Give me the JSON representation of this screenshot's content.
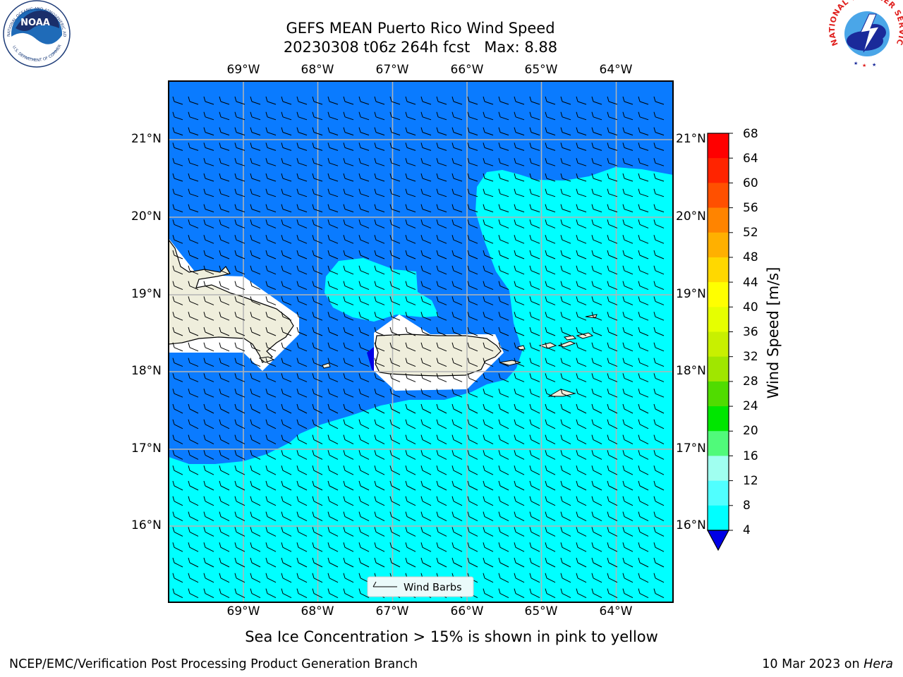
{
  "title": {
    "line1": "GEFS MEAN Puerto Rico Wind Speed",
    "line2": "20230308 t06z 264h fcst   Max: 8.88"
  },
  "map": {
    "lon_labels": [
      "69°W",
      "68°W",
      "67°W",
      "66°W",
      "65°W",
      "64°W"
    ],
    "lat_labels": [
      "21°N",
      "20°N",
      "19°N",
      "18°N",
      "17°N",
      "16°N"
    ],
    "colors": {
      "wind_4_8": "#0a7bff",
      "wind_8_12": "#00ffff",
      "wind_below_4": "#0000e6",
      "land": "#efeedc",
      "grid": "#b4b4b4",
      "barb": "#000000"
    }
  },
  "legend": {
    "label": "Wind Barbs"
  },
  "colorbar": {
    "title": "Wind Speed [m/s]",
    "ticks": [
      "68",
      "64",
      "60",
      "56",
      "52",
      "48",
      "44",
      "40",
      "36",
      "32",
      "28",
      "24",
      "20",
      "16",
      "12",
      "8",
      "4"
    ],
    "colors": [
      "#ff0000",
      "#ff2400",
      "#ff5000",
      "#ff8400",
      "#ffb000",
      "#ffd800",
      "#ffff00",
      "#e6ff00",
      "#c8f000",
      "#a0e600",
      "#50dc00",
      "#00e600",
      "#50fa7a",
      "#a0fff0",
      "#50ffff",
      "#00ffff",
      "#0a7bff"
    ],
    "extend_color": "#0000e6"
  },
  "caption": "Sea Ice Concentration > 15% is shown in pink to yellow",
  "footer": {
    "left": "NCEP/EMC/Verification Post Processing Product Generation Branch",
    "date": "10 Mar 2023 on ",
    "host": "Hera"
  },
  "logos": {
    "noaa": "NOAA",
    "noaa_ring_top": "NATIONAL OCEANIC AND ATMOSPHERIC ADMINISTRATION",
    "noaa_ring_bottom": "U.S. DEPARTMENT OF COMMERCE",
    "nws_ring": "NATIONAL WEATHER SERVICE"
  }
}
